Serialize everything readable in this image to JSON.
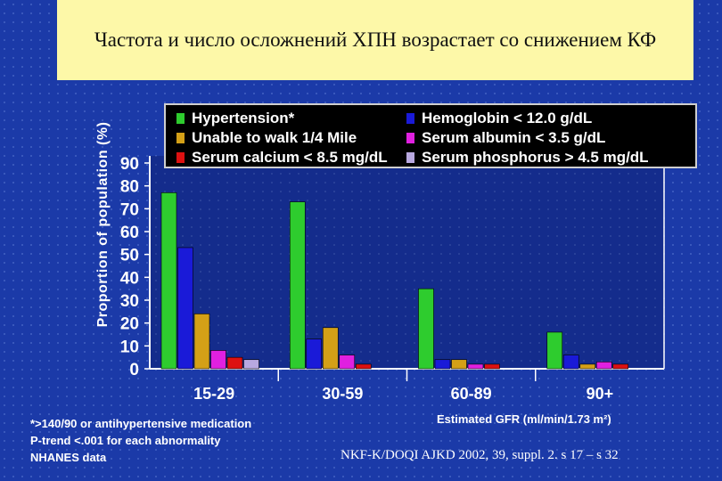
{
  "slide": {
    "title": "Частота и число осложнений ХПН возрастает со снижением КФ",
    "footnote_lines": [
      "*>140/90 or antihypertensive medication",
      "P-trend <.001 for each abnormality",
      "NHANES data"
    ],
    "citation": "NKF-K/DOQI AJKD 2002, 39, suppl. 2. s 17 – s 32"
  },
  "chart_data": {
    "type": "bar",
    "ylabel": "Proportion of population (%)",
    "xlabel": "Estimated GFR (ml/min/1.73 m²)",
    "ylim": [
      0,
      90
    ],
    "yticks": [
      "0",
      "10",
      "20",
      "30",
      "40",
      "50",
      "60",
      "70",
      "80",
      "90"
    ],
    "categories": [
      "15-29",
      "30-59",
      "60-89",
      "90+"
    ],
    "legend_placement": "top",
    "series": [
      {
        "name": "Hypertension*",
        "color": "#2ecc2e",
        "values": [
          77,
          73,
          35,
          16
        ]
      },
      {
        "name": "Hemoglobin < 12.0 g/dL",
        "color": "#1a1ad8",
        "values": [
          53,
          13,
          4,
          6
        ]
      },
      {
        "name": "Unable to walk 1/4 Mile",
        "color": "#d4a017",
        "values": [
          24,
          18,
          4,
          2
        ]
      },
      {
        "name": "Serum albumin < 3.5 g/dL",
        "color": "#e020e0",
        "values": [
          8,
          6,
          2,
          3
        ]
      },
      {
        "name": "Serum calcium < 8.5 mg/dL",
        "color": "#dd1111",
        "values": [
          5,
          2,
          2,
          2
        ]
      },
      {
        "name": "Serum phosphorus > 4.5 mg/dL",
        "color": "#b8a8e0",
        "values": [
          4,
          0,
          0,
          0
        ]
      }
    ]
  }
}
